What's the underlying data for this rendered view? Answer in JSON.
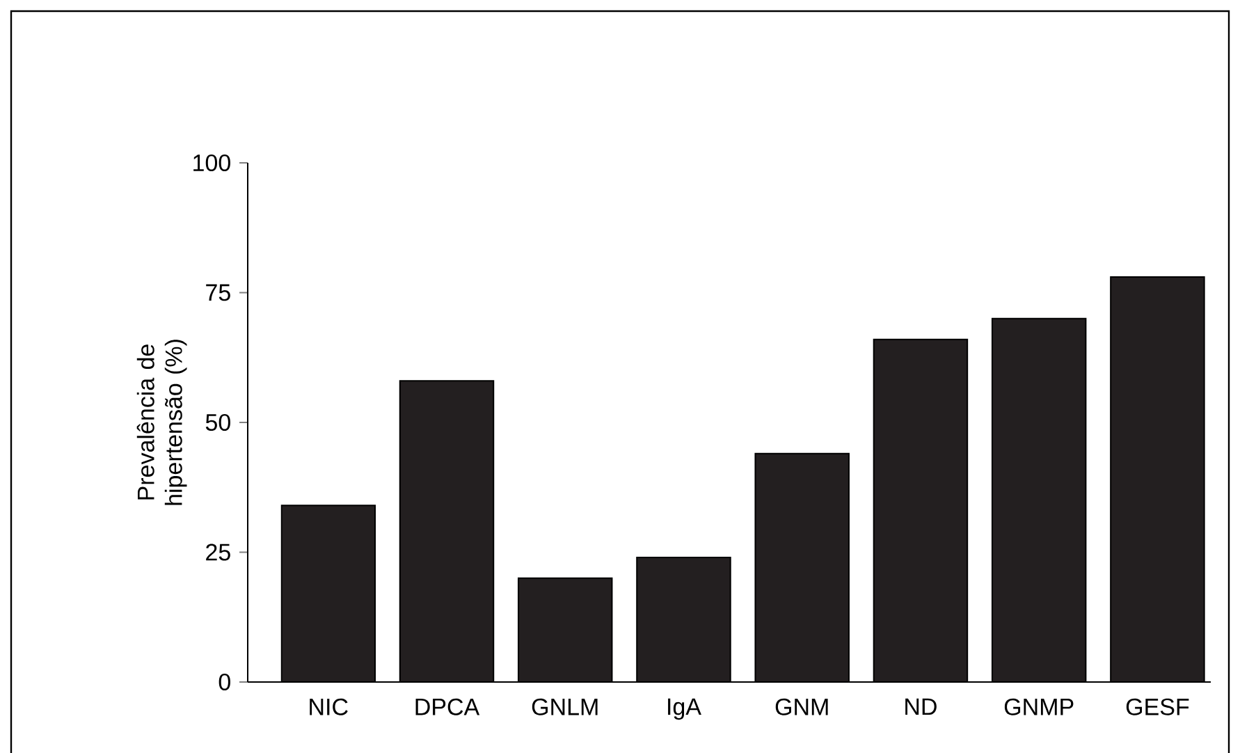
{
  "chart_data": {
    "type": "bar",
    "ylabel": "Prevalência de hipertensão (%)",
    "categories": [
      "NIC",
      "DPCA",
      "GNLM",
      "IgA",
      "GNM",
      "ND",
      "GNMP",
      "GESF"
    ],
    "values": [
      34,
      58,
      20,
      24,
      44,
      66,
      70,
      78
    ],
    "color": "#231f20",
    "ylim": [
      0,
      100
    ],
    "yticks": [
      0,
      25,
      50,
      75,
      100
    ]
  }
}
